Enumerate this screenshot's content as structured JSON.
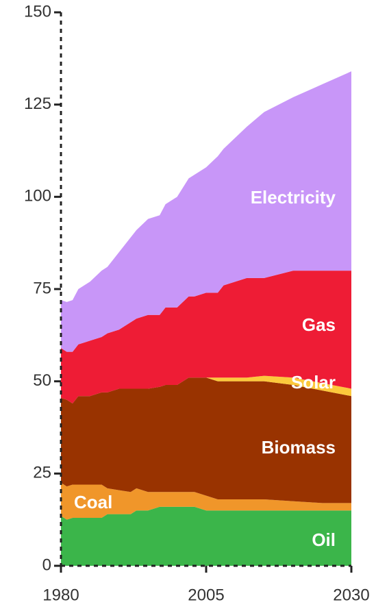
{
  "chart_data": {
    "type": "stacked-area",
    "x": [
      1980,
      1981,
      1982,
      1983,
      1985,
      1987,
      1988,
      1990,
      1992,
      1993,
      1995,
      1997,
      1998,
      2000,
      2002,
      2003,
      2005,
      2007,
      2008,
      2010,
      2012,
      2015,
      2020,
      2025,
      2030
    ],
    "series": [
      {
        "name": "Oil",
        "color": "#3bb54a",
        "values": [
          13.5,
          12.5,
          13,
          13,
          13,
          13,
          14,
          14,
          14,
          15,
          15,
          16,
          16,
          16,
          16,
          16,
          15,
          15,
          15,
          15,
          15,
          15,
          15,
          15,
          15
        ]
      },
      {
        "name": "Coal",
        "color": "#f0962a",
        "values": [
          9,
          9,
          9,
          9,
          9,
          9,
          7,
          6.5,
          6,
          6,
          5,
          4,
          4,
          4,
          4,
          4,
          4,
          3,
          3,
          3,
          3,
          3,
          2.5,
          2,
          2
        ]
      },
      {
        "name": "Biomass",
        "color": "#993300",
        "values": [
          23,
          23.5,
          22,
          24,
          24,
          25,
          26,
          27.5,
          28,
          27,
          28,
          28.5,
          29,
          29,
          31,
          31,
          32,
          32,
          32,
          32,
          32,
          32,
          31.5,
          30.5,
          29
        ]
      },
      {
        "name": "Solar",
        "color": "#fcc93c",
        "values": [
          0,
          0,
          0,
          0,
          0,
          0,
          0,
          0,
          0,
          0,
          0,
          0,
          0,
          0,
          0,
          0,
          0,
          1,
          1,
          1,
          1,
          1.5,
          2,
          2,
          2
        ]
      },
      {
        "name": "Gas",
        "color": "#ee1c35",
        "values": [
          13.5,
          13,
          14,
          14,
          15,
          15,
          16,
          16,
          18,
          19,
          20,
          19.5,
          21,
          21,
          22,
          22,
          23,
          23,
          25,
          26,
          27,
          26.5,
          29,
          30.5,
          32
        ]
      },
      {
        "name": "Electricity",
        "color": "#c896f8",
        "values": [
          13,
          13.5,
          14,
          15,
          16,
          18,
          18,
          21,
          23,
          24,
          26,
          27,
          28,
          30,
          32,
          33,
          34,
          37,
          37,
          39,
          41,
          45,
          47,
          50.5,
          54
        ]
      }
    ],
    "xlim": [
      1980,
      2030
    ],
    "xticks": [
      1980,
      2005,
      2030
    ],
    "ylim": [
      0,
      150
    ],
    "yticks": [
      0,
      25,
      50,
      75,
      100,
      125,
      150
    ]
  }
}
